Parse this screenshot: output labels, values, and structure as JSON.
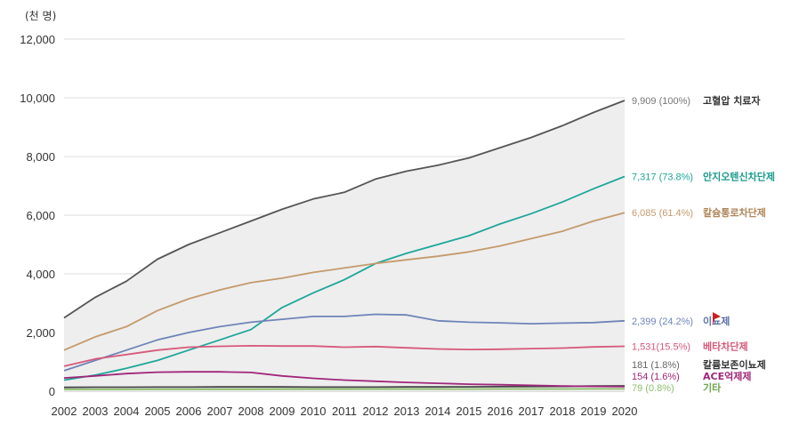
{
  "chart_data": {
    "type": "line",
    "unit_label": "(천 명)",
    "x": [
      "2002",
      "2003",
      "2004",
      "2005",
      "2006",
      "2007",
      "2008",
      "2009",
      "2010",
      "2011",
      "2012",
      "2013",
      "2014",
      "2015",
      "2016",
      "2017",
      "2018",
      "2019",
      "2020"
    ],
    "ylim": [
      0,
      12000
    ],
    "yticks": [
      "0",
      "2,000",
      "4,000",
      "6,000",
      "8,000",
      "10,000",
      "12,000"
    ],
    "grid": true,
    "series": [
      {
        "name": "고혈압 치료자",
        "end_label": "9,909 (100%)",
        "color": "#555555",
        "name_color": "#333333",
        "val_color": "#777777",
        "fill": true,
        "values": [
          2500,
          3200,
          3750,
          4500,
          5000,
          5400,
          5800,
          6200,
          6550,
          6780,
          7230,
          7500,
          7700,
          7950,
          8300,
          8650,
          9050,
          9500,
          9909
        ]
      },
      {
        "name": "안지오텐신차단제",
        "end_label": "7,317 (73.8%)",
        "color": "#1fa69a",
        "name_color": "#1a9a8e",
        "val_color": "#1fa69a",
        "values": [
          380,
          550,
          780,
          1050,
          1400,
          1750,
          2100,
          2850,
          3350,
          3800,
          4350,
          4700,
          5000,
          5300,
          5700,
          6050,
          6450,
          6900,
          7317
        ]
      },
      {
        "name": "칼슘통로차단제",
        "end_label": "6,085 (61.4%)",
        "color": "#c49a6c",
        "name_color": "#b08456",
        "val_color": "#c49a6c",
        "values": [
          1400,
          1850,
          2200,
          2750,
          3150,
          3450,
          3700,
          3850,
          4050,
          4200,
          4350,
          4480,
          4600,
          4750,
          4950,
          5200,
          5450,
          5800,
          6085
        ]
      },
      {
        "name": "이뇨제",
        "end_label": "2,399 (24.2%)",
        "color": "#6e84b8",
        "name_color": "#5a70a8",
        "val_color": "#6e84b8",
        "values": [
          700,
          1050,
          1400,
          1750,
          2000,
          2200,
          2350,
          2450,
          2550,
          2550,
          2620,
          2600,
          2400,
          2350,
          2330,
          2300,
          2320,
          2340,
          2399
        ]
      },
      {
        "name": "베타차단제",
        "end_label": "1,531(15.5%)",
        "color": "#d6597a",
        "name_color": "#d6597a",
        "val_color": "#d6597a",
        "values": [
          850,
          1100,
          1250,
          1400,
          1500,
          1530,
          1550,
          1540,
          1540,
          1500,
          1520,
          1480,
          1440,
          1420,
          1430,
          1450,
          1470,
          1510,
          1531
        ]
      },
      {
        "name": "칼륨보존이뇨제",
        "end_label": "181 (1.8%)",
        "color": "#444444",
        "name_color": "#333333",
        "val_color": "#666666",
        "values": [
          130,
          135,
          135,
          140,
          140,
          145,
          145,
          145,
          140,
          140,
          140,
          145,
          145,
          150,
          155,
          160,
          165,
          175,
          181
        ]
      },
      {
        "name": "ACE억제제",
        "end_label": "154 (1.6%)",
        "color": "#a0267a",
        "name_color": "#a0267a",
        "val_color": "#a0267a",
        "values": [
          450,
          520,
          600,
          650,
          660,
          660,
          640,
          520,
          440,
          380,
          340,
          300,
          270,
          240,
          220,
          200,
          180,
          165,
          154
        ]
      },
      {
        "name": "기타",
        "end_label": "79 (0.8%)",
        "color": "#8cbf6a",
        "name_color": "#6fa84c",
        "val_color": "#8cbf6a",
        "values": [
          60,
          60,
          62,
          64,
          65,
          66,
          68,
          70,
          70,
          70,
          72,
          72,
          73,
          74,
          75,
          76,
          77,
          78,
          79
        ]
      }
    ]
  }
}
